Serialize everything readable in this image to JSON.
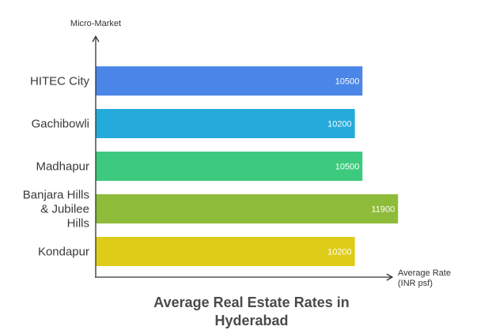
{
  "chart_data": {
    "type": "bar",
    "orientation": "horizontal",
    "title_lines": [
      "Average Real Estate Rates in",
      "Hyderabad"
    ],
    "ylabel": "Micro-Market",
    "xlabel_lines": [
      "Average Rate",
      "(INR psf)"
    ],
    "categories": [
      {
        "label_lines": [
          "HITEC City"
        ]
      },
      {
        "label_lines": [
          "Gachibowli"
        ]
      },
      {
        "label_lines": [
          "Madhapur"
        ]
      },
      {
        "label_lines": [
          "Banjara Hills",
          "& Jubilee",
          "Hills"
        ]
      },
      {
        "label_lines": [
          "Kondapur"
        ]
      }
    ],
    "values": [
      10500,
      10200,
      10500,
      11900,
      10200
    ],
    "colors": [
      "#4a86e8",
      "#24aadb",
      "#3dc97e",
      "#8fbb3b",
      "#decc18"
    ],
    "xlim": [
      0,
      12000
    ],
    "grid": false,
    "legend": "none"
  }
}
